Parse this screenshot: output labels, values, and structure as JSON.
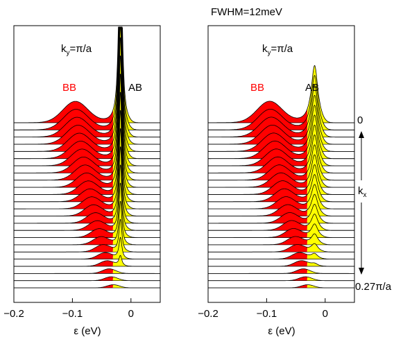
{
  "figure": {
    "top_label": "FWHM=12meV",
    "side_label_top": "0",
    "side_label_bottom": "0.27π/a",
    "side_axis_label": "k",
    "side_axis_sub": "x"
  },
  "colors": {
    "bonding_fill": "#ff0000",
    "antibonding_fill": "#ffff00",
    "edge": "#000000",
    "background": "#ffffff"
  },
  "chart_data": [
    {
      "type": "area",
      "panel": "left",
      "title": "",
      "annotation": {
        "ky_label": "k",
        "ky_sub": "y",
        "ky_value": "=π/a",
        "bb_label": "BB",
        "ab_label": "AB"
      },
      "xlabel": "ε (eV)",
      "xlim": [
        -0.2,
        0.05
      ],
      "xticks": [
        -0.2,
        -0.1,
        0
      ],
      "xtick_labels": [
        "−0.2",
        "−0.1",
        "0"
      ],
      "n_curves": 24,
      "kx_range": [
        "0",
        "0.27π/a"
      ],
      "series": [
        {
          "name": "BB",
          "center_start": -0.095,
          "center_end": -0.03,
          "width": 0.03,
          "peak_amp": 0.8
        },
        {
          "name": "AB",
          "center_start": -0.018,
          "center_end": -0.018,
          "width": 0.003,
          "peak_amp": 9.0
        }
      ]
    },
    {
      "type": "area",
      "panel": "right",
      "title": "",
      "annotation": {
        "ky_label": "k",
        "ky_sub": "y",
        "ky_value": "=π/a",
        "bb_label": "BB",
        "ab_label": "AB"
      },
      "xlabel": "ε (eV)",
      "xlim": [
        -0.2,
        0.05
      ],
      "xticks": [
        -0.2,
        -0.1,
        0
      ],
      "xtick_labels": [
        "−0.2",
        "−0.1",
        "0"
      ],
      "n_curves": 24,
      "kx_range": [
        "0",
        "0.27π/a"
      ],
      "series": [
        {
          "name": "BB",
          "center_start": -0.095,
          "center_end": -0.03,
          "width": 0.03,
          "peak_amp": 0.8
        },
        {
          "name": "AB",
          "center_start": -0.018,
          "center_end": -0.018,
          "width": 0.007,
          "peak_amp": 2.2
        }
      ]
    }
  ]
}
